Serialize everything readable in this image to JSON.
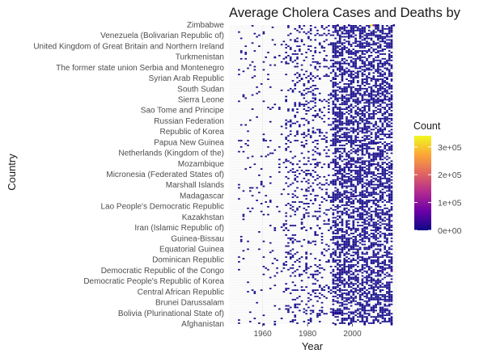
{
  "chart_data": {
    "type": "heatmap",
    "title": "Average Cholera Cases and Deaths by",
    "xlabel": "Year",
    "ylabel": "Country",
    "x_ticks": [
      1960,
      1980,
      2000
    ],
    "xlim": [
      1945,
      2020
    ],
    "grid": true,
    "legend": {
      "title": "Count",
      "position": "right",
      "labels": [
        "3e+05",
        "2e+05",
        "1e+05",
        "0e+00"
      ],
      "values": [
        300000,
        200000,
        100000,
        0
      ],
      "range": [
        0,
        340000
      ],
      "colors": [
        "#0d0887",
        "#6a00a8",
        "#b12a90",
        "#e16462",
        "#fca636",
        "#f0f921"
      ]
    },
    "countries_shown": [
      "Zimbabwe",
      "Venezuela (Bolivarian Republic of)",
      "United Kingdom of Great Britain and Northern Ireland",
      "Turkmenistan",
      "The former state union Serbia and Montenegro",
      "Syrian Arab Republic",
      "South Sudan",
      "Sierra Leone",
      "Sao Tome and Principe",
      "Russian Federation",
      "Republic of Korea",
      "Papua New Guinea",
      "Netherlands (Kingdom of the)",
      "Mozambique",
      "Micronesia (Federated States of)",
      "Marshall Islands",
      "Madagascar",
      "Lao People's Democratic Republic",
      "Kazakhstan",
      "Iran (Islamic Republic of)",
      "Guinea-Bissau",
      "Equatorial Guinea",
      "Dominican Republic",
      "Democratic Republic of the Congo",
      "Democratic People's Republic of Korea",
      "Central African Republic",
      "Brunei Darussalam",
      "Bolivia (Plurinational State of)",
      "Afghanistan"
    ],
    "series": [
      {
        "name": "Zimbabwe",
        "points": [
          [
            1993,
            5000
          ],
          [
            1998,
            8000
          ],
          [
            2008,
            340000
          ],
          [
            2009,
            120000
          ],
          [
            2010,
            1200
          ],
          [
            2011,
            1100
          ],
          [
            2018,
            10000
          ]
        ]
      },
      {
        "name": "Turkmenistan",
        "points": [
          [
            1965,
            3000
          ],
          [
            1970,
            2000
          ]
        ]
      },
      {
        "name": "Syrian Arab Republic",
        "points": [
          [
            1977,
            2000
          ],
          [
            1981,
            1500
          ],
          [
            1985,
            1000
          ],
          [
            1992,
            500
          ],
          [
            2008,
            300
          ],
          [
            2015,
            200
          ]
        ]
      },
      {
        "name": "Sierra Leone",
        "points": [
          [
            1970,
            2000
          ],
          [
            1985,
            3000
          ],
          [
            1995,
            5000
          ],
          [
            2004,
            8000
          ],
          [
            2007,
            3000
          ],
          [
            2012,
            23000
          ],
          [
            2013,
            1000
          ]
        ]
      },
      {
        "name": "Papua New Guinea",
        "points": [
          [
            2009,
            15000
          ],
          [
            2010,
            8000
          ],
          [
            2011,
            2000
          ]
        ]
      },
      {
        "name": "Mozambique",
        "points": [
          [
            1973,
            1000
          ],
          [
            1983,
            5000
          ],
          [
            1992,
            30000
          ],
          [
            1997,
            40000
          ],
          [
            1999,
            44000
          ],
          [
            2008,
            20000
          ],
          [
            2009,
            19000
          ],
          [
            2015,
            8000
          ],
          [
            2017,
            3000
          ]
        ]
      },
      {
        "name": "Madagascar",
        "points": [
          [
            1999,
            40000
          ],
          [
            2000,
            29000
          ],
          [
            2001,
            1000
          ]
        ]
      },
      {
        "name": "Iran (Islamic Republic of)",
        "points": [
          [
            1965,
            2000
          ],
          [
            1970,
            1500
          ],
          [
            1977,
            1000
          ],
          [
            1981,
            3000
          ],
          [
            1985,
            1500
          ],
          [
            1998,
            10000
          ],
          [
            2005,
            1500
          ],
          [
            2011,
            1200
          ],
          [
            2012,
            1000
          ]
        ]
      },
      {
        "name": "Democratic Republic of the Congo",
        "points": [
          [
            1978,
            5000
          ],
          [
            1984,
            2000
          ],
          [
            1994,
            58000
          ],
          [
            2002,
            28000
          ],
          [
            2008,
            30000
          ],
          [
            2011,
            21000
          ],
          [
            2012,
            33000
          ],
          [
            2017,
            55000
          ]
        ]
      },
      {
        "name": "Bolivia (Plurinational State of)",
        "points": [
          [
            1991,
            20000
          ],
          [
            1992,
            22000
          ],
          [
            1993,
            10000
          ],
          [
            1994,
            2000
          ]
        ]
      },
      {
        "name": "Afghanistan",
        "points": [
          [
            1960,
            500
          ],
          [
            1965,
            1500
          ],
          [
            1992,
            2000
          ],
          [
            1998,
            5000
          ],
          [
            2005,
            3000
          ],
          [
            2017,
            3000
          ]
        ]
      }
    ]
  }
}
